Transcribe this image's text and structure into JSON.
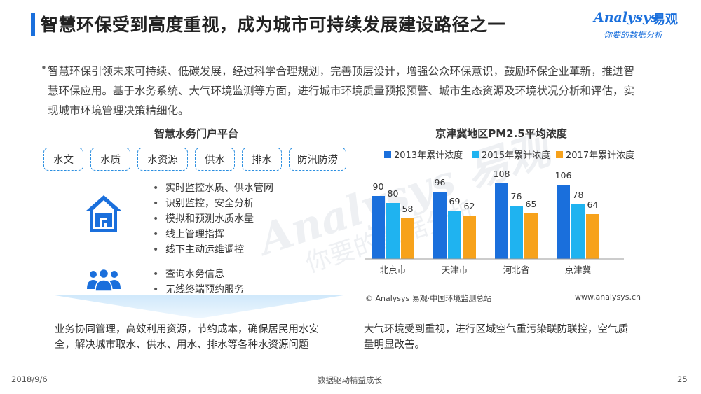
{
  "header": {
    "title": "智慧环保受到高度重视，成为城市可持续发展建设路径之一",
    "logo_en": "Analysys",
    "logo_cn": "易观",
    "logo_slogan": "你要的数据分析",
    "accent_color": "#1a6fdc"
  },
  "intro": {
    "bullet": "•",
    "text": "智慧环保引领未来可持续、低碳发展，经过科学合理规划，完善顶层设计，增强公众环保意识，鼓励环保企业革新，推进智慧环保应用。基于水务系统、大气环境监测等方面，进行城市环境质量预报预警、城市生态资源及环境状况分析和评估，实现城市环境管理决策精细化。"
  },
  "left_panel": {
    "title": "智慧水务门户平台",
    "tags": [
      "水文",
      "水质",
      "水资源",
      "供水",
      "排水",
      "防汛防涝"
    ],
    "house_features": [
      "实时监控水质、供水管网",
      "识别监控，安全分析",
      "模拟和预测水质水量",
      "线上管理指挥",
      "线下主动运维调控"
    ],
    "people_features": [
      "查询水务信息",
      "无线终端预约服务"
    ],
    "summary_line1": "业务协同管理，高效利用资源，节约成本，确保居民用水安",
    "summary_line2": "全，解决城市取水、供水、用水、排水等各种水资源问题",
    "icons": [
      "house-icon",
      "people-icon"
    ]
  },
  "right_panel": {
    "title": "京津冀地区PM2.5平均浓度",
    "source": "© Analysys 易观·中国环境监测总站",
    "website": "www.analysys.cn",
    "summary_line1": "大气环境受到重视，进行区域空气重污染联防联控，空气质",
    "summary_line2": "量明显改善。"
  },
  "chart_data": {
    "type": "bar",
    "title": "京津冀地区PM2.5平均浓度",
    "categories": [
      "北京市",
      "天津市",
      "河北省",
      "京津冀"
    ],
    "series": [
      {
        "name": "2013年累计浓度",
        "values": [
          90,
          96,
          108,
          106
        ],
        "color": "#1a6fdc"
      },
      {
        "name": "2015年累计浓度",
        "values": [
          80,
          69,
          76,
          78
        ],
        "color": "#1fb3f0"
      },
      {
        "name": "2017年累计浓度",
        "values": [
          58,
          62,
          65,
          64
        ],
        "color": "#f7a21b"
      }
    ],
    "ylim": [
      0,
      120
    ],
    "grid": false,
    "legend": "top"
  },
  "footer": {
    "date": "2018/9/6",
    "center": "数据驱动精益成长",
    "page": "25"
  },
  "watermark": {
    "text_en": "Analysys",
    "text_cn": "易观",
    "slogan": "你要的数据分析"
  }
}
